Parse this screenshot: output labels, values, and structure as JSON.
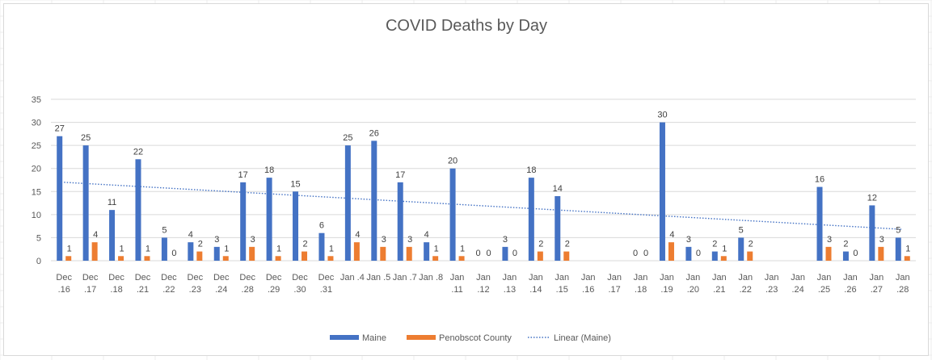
{
  "colors": {
    "series_maine": "#4472C4",
    "series_penobscot": "#ED7D31",
    "trendline": "#4472C4",
    "gridline": "#d9d9d9",
    "axis_text": "#595959"
  },
  "chart_data": {
    "type": "bar",
    "title": "COVID Deaths by Day",
    "xlabel": "",
    "ylabel": "",
    "ylim": [
      0,
      35
    ],
    "yticks": [
      0,
      5,
      10,
      15,
      20,
      25,
      30,
      35
    ],
    "grid": true,
    "legend_position": "bottom",
    "categories": [
      [
        "Dec",
        ".16"
      ],
      [
        "Dec",
        ".17"
      ],
      [
        "Dec",
        ".18"
      ],
      [
        "Dec",
        ".21"
      ],
      [
        "Dec",
        ".22"
      ],
      [
        "Dec",
        ".23"
      ],
      [
        "Dec",
        ".24"
      ],
      [
        "Dec",
        ".28"
      ],
      [
        "Dec",
        ".29"
      ],
      [
        "Dec",
        ".30"
      ],
      [
        "Dec",
        ".31"
      ],
      [
        "Jan .4"
      ],
      [
        "Jan .5"
      ],
      [
        "Jan .7"
      ],
      [
        "Jan .8"
      ],
      [
        "Jan",
        ".11"
      ],
      [
        "Jan",
        ".12"
      ],
      [
        "Jan",
        ".13"
      ],
      [
        "Jan",
        ".14"
      ],
      [
        "Jan",
        ".15"
      ],
      [
        "Jan",
        ".16"
      ],
      [
        "Jan",
        ".17"
      ],
      [
        "Jan",
        ".18"
      ],
      [
        "Jan",
        ".19"
      ],
      [
        "Jan",
        ".20"
      ],
      [
        "Jan",
        ".21"
      ],
      [
        "Jan",
        ".22"
      ],
      [
        "Jan",
        ".23"
      ],
      [
        "Jan",
        ".24"
      ],
      [
        "Jan",
        ".25"
      ],
      [
        "Jan",
        ".26"
      ],
      [
        "Jan",
        ".27"
      ],
      [
        "Jan",
        ".28"
      ]
    ],
    "series": [
      {
        "name": "Maine",
        "color": "#4472C4",
        "values": [
          27,
          25,
          11,
          22,
          5,
          4,
          3,
          17,
          18,
          15,
          6,
          25,
          26,
          17,
          4,
          20,
          0,
          3,
          18,
          14,
          null,
          null,
          0,
          30,
          3,
          2,
          5,
          null,
          null,
          16,
          2,
          12,
          5
        ],
        "labels": [
          "27",
          "25",
          "11",
          "22",
          "5",
          "4",
          "3",
          "17",
          "18",
          "15",
          "6",
          "25",
          "26",
          "17",
          "4",
          "20",
          "0",
          "3",
          "18",
          "14",
          "",
          "",
          "0",
          "30",
          "3",
          "2",
          "5",
          "",
          "",
          "16",
          "2",
          "12",
          "5"
        ]
      },
      {
        "name": "Penobscot County",
        "color": "#ED7D31",
        "values": [
          1,
          4,
          1,
          1,
          0,
          2,
          1,
          3,
          1,
          2,
          1,
          4,
          3,
          3,
          1,
          1,
          0,
          0,
          2,
          2,
          null,
          null,
          0,
          4,
          0,
          1,
          2,
          null,
          null,
          3,
          0,
          3,
          1
        ],
        "labels": [
          "1",
          "4",
          "1",
          "1",
          "0",
          "2",
          "1",
          "3",
          "1",
          "2",
          "1",
          "4",
          "3",
          "3",
          "1",
          "1",
          "0",
          "0",
          "2",
          "2",
          "",
          "",
          "0",
          "4",
          "0",
          "1",
          "2",
          "",
          "",
          "3",
          "0",
          "3",
          "1"
        ]
      }
    ],
    "trendline": {
      "name": "Linear (Maine)",
      "series": "Maine",
      "type": "linear",
      "start_value": 17,
      "end_value": 6.8,
      "style": "dotted"
    }
  }
}
